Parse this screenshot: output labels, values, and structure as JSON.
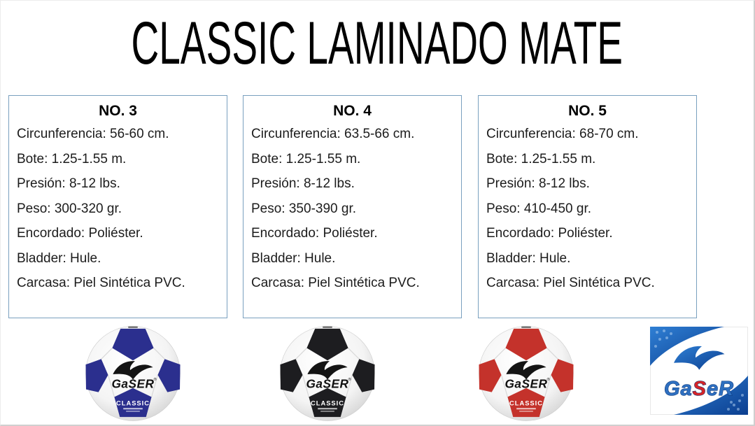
{
  "title": "CLASSIC LAMINADO MATE",
  "spec_cards": [
    {
      "header": "NO. 3",
      "lines": [
        "Circunferencia: 56-60 cm.",
        "Bote: 1.25-1.55 m.",
        "Presión: 8-12 lbs.",
        "Peso: 300-320 gr.",
        "Encordado: Poliéster.",
        "Bladder: Hule.",
        "Carcasa: Piel Sintética PVC."
      ]
    },
    {
      "header": "NO. 4",
      "lines": [
        "Circunferencia: 63.5-66 cm.",
        "Bote: 1.25-1.55 m.",
        "Presión: 8-12 lbs.",
        "Peso: 350-390 gr.",
        "Encordado: Poliéster.",
        "Bladder: Hule.",
        "Carcasa: Piel Sintética PVC."
      ]
    },
    {
      "header": "NO. 5",
      "lines": [
        "Circunferencia: 68-70 cm.",
        "Bote: 1.25-1.55 m.",
        "Presión: 8-12 lbs.",
        "Peso: 410-450 gr.",
        "Encordado: Poliéster.",
        "Bladder: Hule.",
        "Carcasa: Piel Sintética PVC."
      ]
    }
  ],
  "balls": [
    {
      "name": "ball-blue",
      "accent": "#2b2f8e",
      "brand": "GaSER",
      "trademark": "®",
      "model": "CLASSIC"
    },
    {
      "name": "ball-black",
      "accent": "#1d1d20",
      "brand": "GaSER",
      "trademark": "®",
      "model": "CLASSIC"
    },
    {
      "name": "ball-red",
      "accent": "#c4322b",
      "brand": "GaSER",
      "trademark": "®",
      "model": "CLASSIC"
    }
  ],
  "brand_logo": {
    "segments": [
      {
        "text": "Ga",
        "color": "#2e6fc0"
      },
      {
        "text": "S",
        "color": "#d42428"
      },
      {
        "text": "eR",
        "color": "#2e6fc0"
      }
    ]
  },
  "colors": {
    "card_border": "#7aa0bf",
    "spec_text": "#1c1c1c",
    "logo_blue": "#1a50a0"
  }
}
